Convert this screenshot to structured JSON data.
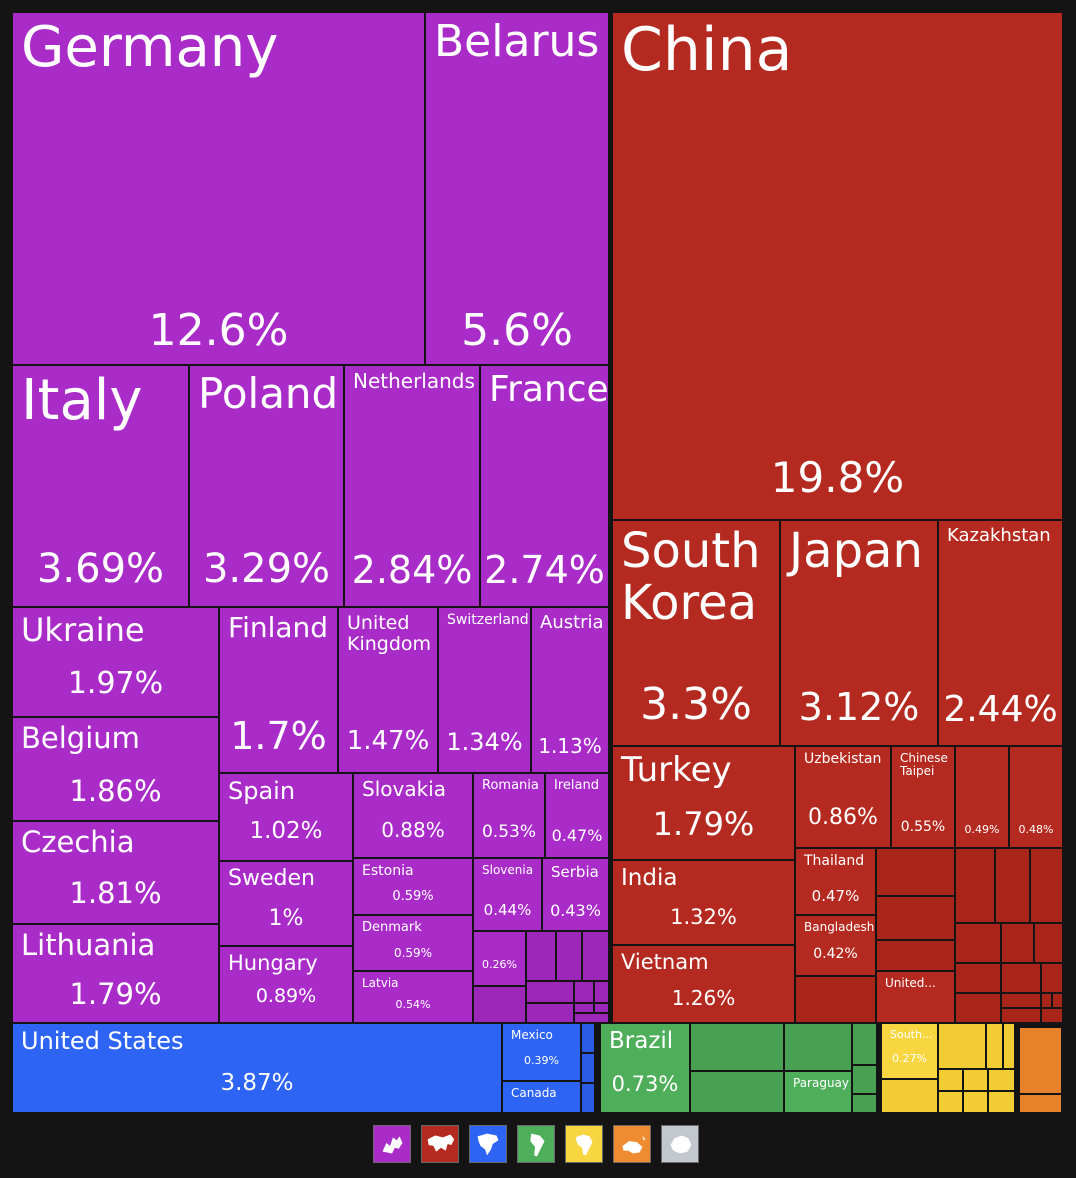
{
  "chart_data": {
    "type": "treemap",
    "groups": [
      {
        "name": "Europe",
        "color": "#a92cc8",
        "icon": "europe-icon",
        "items": [
          {
            "name": "Germany",
            "value": 12.6,
            "label": "12.6%"
          },
          {
            "name": "Belarus",
            "value": 5.6,
            "label": "5.6%"
          },
          {
            "name": "Italy",
            "value": 3.69,
            "label": "3.69%"
          },
          {
            "name": "Poland",
            "value": 3.29,
            "label": "3.29%"
          },
          {
            "name": "Netherlands",
            "value": 2.84,
            "label": "2.84%"
          },
          {
            "name": "France",
            "value": 2.74,
            "label": "2.74%"
          },
          {
            "name": "Ukraine",
            "value": 1.97,
            "label": "1.97%"
          },
          {
            "name": "Belgium",
            "value": 1.86,
            "label": "1.86%"
          },
          {
            "name": "Czechia",
            "value": 1.81,
            "label": "1.81%"
          },
          {
            "name": "Lithuania",
            "value": 1.79,
            "label": "1.79%"
          },
          {
            "name": "Finland",
            "value": 1.7,
            "label": "1.7%"
          },
          {
            "name": "United Kingdom",
            "value": 1.47,
            "label": "1.47%"
          },
          {
            "name": "Switzerland",
            "value": 1.34,
            "label": "1.34%"
          },
          {
            "name": "Austria",
            "value": 1.13,
            "label": "1.13%"
          },
          {
            "name": "Spain",
            "value": 1.02,
            "label": "1.02%"
          },
          {
            "name": "Sweden",
            "value": 1.0,
            "label": "1%"
          },
          {
            "name": "Hungary",
            "value": 0.89,
            "label": "0.89%"
          },
          {
            "name": "Slovakia",
            "value": 0.88,
            "label": "0.88%"
          },
          {
            "name": "Romania",
            "value": 0.53,
            "label": "0.53%"
          },
          {
            "name": "Ireland",
            "value": 0.47,
            "label": "0.47%"
          },
          {
            "name": "Estonia",
            "value": 0.59,
            "label": "0.59%"
          },
          {
            "name": "Denmark",
            "value": 0.59,
            "label": "0.59%"
          },
          {
            "name": "Latvia",
            "value": 0.54,
            "label": "0.54%"
          },
          {
            "name": "Slovenia",
            "value": 0.44,
            "label": "0.44%"
          },
          {
            "name": "Serbia",
            "value": 0.43,
            "label": "0.43%"
          },
          {
            "name": "",
            "value": 0.26,
            "label": "0.26%"
          }
        ]
      },
      {
        "name": "Asia",
        "color": "#b52a20",
        "icon": "asia-icon",
        "items": [
          {
            "name": "China",
            "value": 19.8,
            "label": "19.8%"
          },
          {
            "name": "South Korea",
            "value": 3.3,
            "label": "3.3%"
          },
          {
            "name": "Japan",
            "value": 3.12,
            "label": "3.12%"
          },
          {
            "name": "Kazakhstan",
            "value": 2.44,
            "label": "2.44%"
          },
          {
            "name": "Turkey",
            "value": 1.79,
            "label": "1.79%"
          },
          {
            "name": "India",
            "value": 1.32,
            "label": "1.32%"
          },
          {
            "name": "Vietnam",
            "value": 1.26,
            "label": "1.26%"
          },
          {
            "name": "Uzbekistan",
            "value": 0.86,
            "label": "0.86%"
          },
          {
            "name": "Chinese Taipei",
            "value": 0.55,
            "label": "0.55%"
          },
          {
            "name": "",
            "value": 0.49,
            "label": "0.49%"
          },
          {
            "name": "",
            "value": 0.48,
            "label": "0.48%"
          },
          {
            "name": "Thailand",
            "value": 0.47,
            "label": "0.47%"
          },
          {
            "name": "Bangladesh",
            "value": 0.42,
            "label": "0.42%"
          },
          {
            "name": "United...",
            "value": null,
            "label": ""
          }
        ]
      },
      {
        "name": "North America",
        "color": "#2d64f4",
        "icon": "north-america-icon",
        "items": [
          {
            "name": "United States",
            "value": 3.87,
            "label": "3.87%"
          },
          {
            "name": "Mexico",
            "value": 0.39,
            "label": "0.39%"
          },
          {
            "name": "Canada",
            "value": null,
            "label": ""
          }
        ]
      },
      {
        "name": "South America",
        "color": "#4fae5a",
        "icon": "south-america-icon",
        "items": [
          {
            "name": "Brazil",
            "value": 0.73,
            "label": "0.73%"
          },
          {
            "name": "Paraguay",
            "value": null,
            "label": ""
          }
        ]
      },
      {
        "name": "Africa",
        "color": "#f7d641",
        "icon": "africa-icon",
        "items": [
          {
            "name": "South...",
            "value": 0.27,
            "label": "0.27%"
          }
        ]
      },
      {
        "name": "Oceania",
        "color": "#ef8c31",
        "icon": "oceania-icon",
        "items": []
      },
      {
        "name": "Antarctica",
        "color": "#c2c8ce",
        "icon": "antarctica-icon",
        "items": []
      }
    ]
  }
}
